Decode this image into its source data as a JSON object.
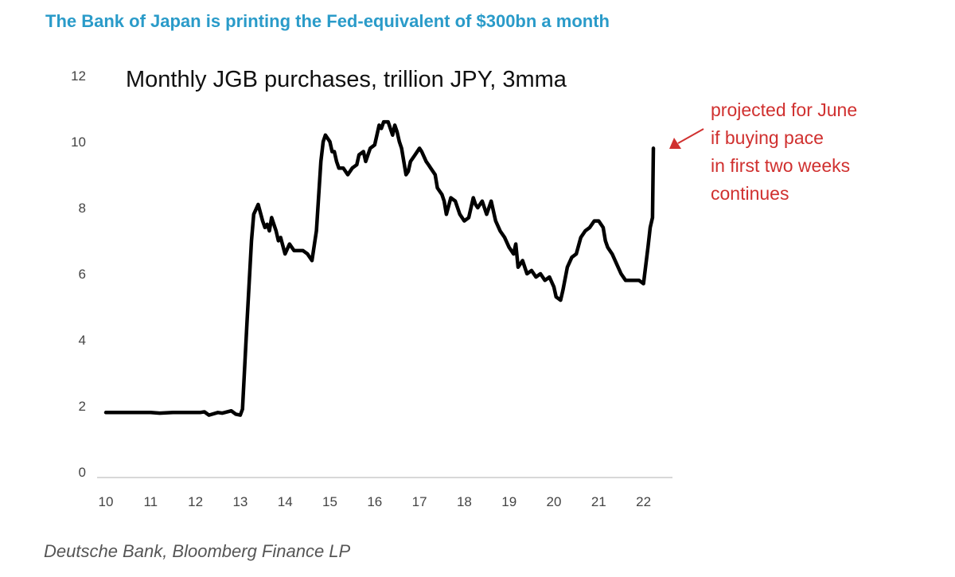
{
  "headline": "The Bank of Japan is printing the Fed-equivalent of $300bn a month",
  "source": "Deutsche Bank, Bloomberg Finance LP",
  "colors": {
    "headline": "#2a9bc9",
    "line": "#000000",
    "annotation": "#d0302f",
    "axis": "#cccccc"
  },
  "chart_data": {
    "type": "line",
    "title": "Monthly JGB purchases, trillion JPY, 3mma",
    "xlabel": "",
    "ylabel": "",
    "xlim": [
      10,
      22.5
    ],
    "ylim": [
      0,
      12
    ],
    "x_ticks": [
      "10",
      "11",
      "12",
      "13",
      "14",
      "15",
      "16",
      "17",
      "18",
      "19",
      "20",
      "21",
      "22"
    ],
    "y_ticks": [
      "0",
      "2",
      "4",
      "6",
      "8",
      "10",
      "12"
    ],
    "grid": false,
    "legend": "none",
    "series": [
      {
        "name": "",
        "x": [
          10.0,
          10.5,
          11.0,
          11.2,
          11.5,
          12.0,
          12.1,
          12.2,
          12.3,
          12.5,
          12.6,
          12.8,
          12.9,
          13.0,
          13.05,
          13.15,
          13.25,
          13.3,
          13.4,
          13.5,
          13.55,
          13.6,
          13.65,
          13.7,
          13.8,
          13.85,
          13.9,
          14.0,
          14.1,
          14.2,
          14.3,
          14.4,
          14.5,
          14.6,
          14.7,
          14.8,
          14.85,
          14.9,
          15.0,
          15.05,
          15.1,
          15.15,
          15.2,
          15.3,
          15.4,
          15.5,
          15.6,
          15.65,
          15.75,
          15.8,
          15.9,
          16.0,
          16.05,
          16.1,
          16.15,
          16.2,
          16.3,
          16.4,
          16.45,
          16.5,
          16.55,
          16.6,
          16.7,
          16.75,
          16.8,
          16.9,
          17.0,
          17.05,
          17.15,
          17.2,
          17.25,
          17.35,
          17.4,
          17.5,
          17.55,
          17.6,
          17.7,
          17.8,
          17.9,
          18.0,
          18.1,
          18.2,
          18.25,
          18.3,
          18.4,
          18.5,
          18.6,
          18.7,
          18.8,
          18.9,
          19.0,
          19.1,
          19.15,
          19.2,
          19.3,
          19.4,
          19.5,
          19.6,
          19.7,
          19.8,
          19.9,
          20.0,
          20.05,
          20.15,
          20.2,
          20.3,
          20.4,
          20.5,
          20.6,
          20.7,
          20.8,
          20.9,
          21.0,
          21.1,
          21.15,
          21.2,
          21.3,
          21.4,
          21.5,
          21.6,
          21.7,
          21.8,
          21.9,
          22.0,
          22.1,
          22.15,
          22.2,
          22.22
        ],
        "values": [
          1.8,
          1.8,
          1.8,
          1.78,
          1.8,
          1.8,
          1.8,
          1.82,
          1.72,
          1.8,
          1.78,
          1.85,
          1.75,
          1.72,
          1.9,
          4.5,
          7.0,
          7.8,
          8.1,
          7.6,
          7.4,
          7.5,
          7.3,
          7.7,
          7.3,
          7.0,
          7.1,
          6.6,
          6.9,
          6.7,
          6.7,
          6.7,
          6.6,
          6.4,
          7.3,
          9.4,
          10.0,
          10.2,
          10.0,
          9.7,
          9.7,
          9.4,
          9.2,
          9.2,
          9.0,
          9.2,
          9.3,
          9.6,
          9.7,
          9.4,
          9.8,
          9.9,
          10.2,
          10.5,
          10.4,
          10.6,
          10.6,
          10.2,
          10.5,
          10.3,
          10.0,
          9.8,
          9.0,
          9.1,
          9.4,
          9.6,
          9.8,
          9.7,
          9.4,
          9.3,
          9.2,
          9.0,
          8.6,
          8.4,
          8.2,
          7.8,
          8.3,
          8.2,
          7.8,
          7.6,
          7.7,
          8.3,
          8.1,
          8.0,
          8.2,
          7.8,
          8.2,
          7.6,
          7.3,
          7.1,
          6.8,
          6.6,
          6.9,
          6.2,
          6.4,
          6.0,
          6.1,
          5.9,
          6.0,
          5.8,
          5.9,
          5.6,
          5.3,
          5.2,
          5.5,
          6.2,
          6.5,
          6.6,
          7.1,
          7.3,
          7.4,
          7.6,
          7.6,
          7.4,
          7.0,
          6.8,
          6.6,
          6.3,
          6.0,
          5.8,
          5.8,
          5.8,
          5.8,
          5.7,
          6.8,
          7.4,
          7.7,
          9.8
        ]
      }
    ],
    "annotations": [
      "projected for June",
      "if buying pace",
      "in first two weeks",
      "continues"
    ]
  }
}
